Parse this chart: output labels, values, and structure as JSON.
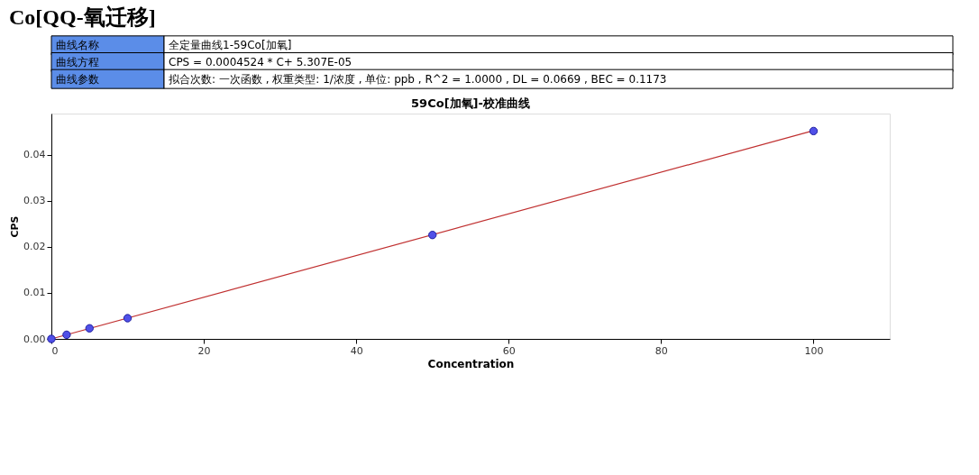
{
  "chart_data": {
    "type": "scatter",
    "title": "Co[QQ-氧迁移]",
    "subtitle": "59Co[加氧]-校准曲线",
    "xlabel": "Concentration",
    "ylabel": "CPS",
    "annotations": [
      "曲线名称",
      "全定量曲线1-59Co[加氧]",
      "曲线方程",
      "CPS = 0.0004524 * C+ 5.307E-05",
      "曲线参数",
      "拟合次数: 一次函数 , 权重类型: 1/浓度 , 单位: ppb , R^2 = 1.0000 , DL = 0.0669 , BEC = 0.1173"
    ],
    "xlim": [
      0,
      110
    ],
    "xticks": [
      0,
      20,
      40,
      60,
      80,
      100
    ],
    "ylim": [
      0,
      0.049
    ],
    "yticks": [
      {
        "value": 0,
        "label": "0.00"
      },
      {
        "value": 0.01,
        "label": "0.01"
      },
      {
        "value": 0.02,
        "label": "0.02"
      },
      {
        "value": 0.03,
        "label": "0.03"
      },
      {
        "value": 0.04,
        "label": "0.04"
      }
    ],
    "grid": false,
    "series": [
      {
        "type": "line",
        "marker": "none",
        "color": "#c03030",
        "x": [
          0,
          100
        ],
        "values": [
          0.0,
          0.0453
        ]
      },
      {
        "marker": "circle",
        "color": "#5050e8",
        "x": [
          0,
          2,
          5,
          10,
          50,
          100
        ],
        "values": [
          0.0,
          0.0009,
          0.0023,
          0.0045,
          0.0226,
          0.0452
        ]
      }
    ]
  }
}
